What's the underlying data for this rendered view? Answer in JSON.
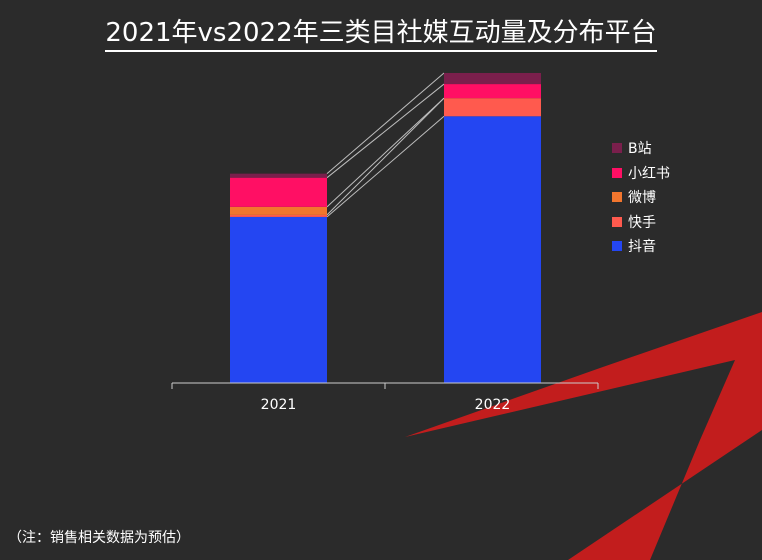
{
  "title": "2021年vs2022年三类目社媒互动量及分布平台",
  "footnote": "（注：销售相关数据为预估）",
  "colors": {
    "background": "#2b2b2b",
    "accent_shape": "#c21d1d"
  },
  "chart_data": {
    "type": "bar",
    "stacked": true,
    "categories": [
      "2021",
      "2022"
    ],
    "series": [
      {
        "name": "抖音",
        "color": "#2446f2",
        "values": [
          165,
          265
        ]
      },
      {
        "name": "快手",
        "color": "#ff5a4e",
        "values": [
          2,
          18
        ]
      },
      {
        "name": "微博",
        "color": "#f2762e",
        "values": [
          8,
          0
        ]
      },
      {
        "name": "小红书",
        "color": "#ff0f64",
        "values": [
          29,
          14
        ]
      },
      {
        "name": "B站",
        "color": "#7a1f4c",
        "values": [
          4,
          11
        ]
      }
    ],
    "legend_order": [
      "B站",
      "小红书",
      "微博",
      "快手",
      "抖音"
    ],
    "legend_position": "right",
    "ylim": [
      0,
      308
    ],
    "grid": false,
    "connectors": true,
    "xlabel": "",
    "ylabel": ""
  }
}
